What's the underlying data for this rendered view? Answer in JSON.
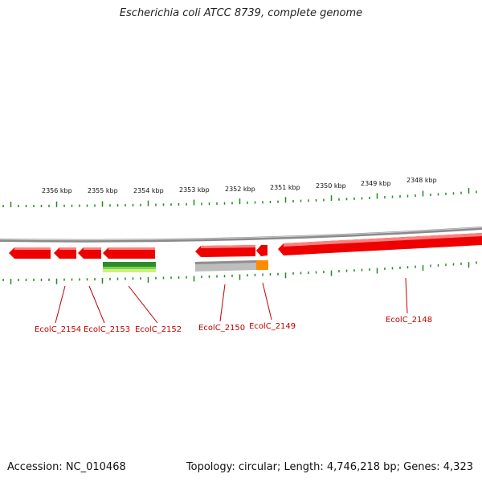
{
  "title": "Escherichia coli ATCC 8739, complete genome",
  "footer": {
    "accession": "Accession: NC_010468",
    "summary": "Topology: circular; Length: 4,746,218 bp; Genes: 4,323"
  },
  "colors": {
    "backbone": "#8a8a8a",
    "gene": "#ee0000",
    "label": "#c00000",
    "tick": "#1f8a1f",
    "feature_green": "#2e8b2e",
    "feature_light": "#b5e61d",
    "feature_gray": "#bdbdbd",
    "feature_orange": "#ff8c00"
  },
  "scale_labels": [
    "2356 kbp",
    "2355 kbp",
    "2354 kbp",
    "2353 kbp",
    "2352 kbp",
    "2351 kbp",
    "2350 kbp",
    "2349 kbp",
    "2348 kbp"
  ],
  "genes": [
    "EcolC_2154",
    "EcolC_2153",
    "EcolC_2152",
    "EcolC_2150",
    "EcolC_2149",
    "EcolC_2148"
  ]
}
